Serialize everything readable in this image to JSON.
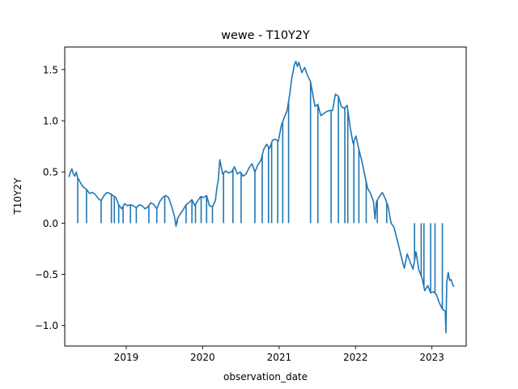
{
  "chart_data": {
    "type": "line",
    "title": "wewe - T10Y2Y",
    "xlabel": "observation_date",
    "ylabel": "T10Y2Y",
    "xlim": [
      "2018-03-13",
      "2023-06-14"
    ],
    "ylim": [
      -1.2,
      1.72
    ],
    "x_tick_labels": [
      "2019",
      "2020",
      "2021",
      "2022",
      "2023"
    ],
    "x_ticks": [
      "2019-01-01",
      "2020-01-01",
      "2021-01-01",
      "2022-01-01",
      "2023-01-01"
    ],
    "y_ticks": [
      -1.0,
      -0.5,
      0.0,
      0.5,
      1.0,
      1.5
    ],
    "y_tick_labels": [
      "−1.0",
      "−0.5",
      "0.0",
      "0.5",
      "1.0",
      "1.5"
    ],
    "grid": false,
    "line_color": "#1f77b4",
    "series": [
      {
        "x": [
          "2018-04-02",
          "2018-04-09",
          "2018-04-16",
          "2018-04-23",
          "2018-04-30",
          "2018-05-07",
          "2018-05-14",
          "2018-05-21",
          "2018-05-28",
          "2018-06-11",
          "2018-06-25",
          "2018-07-09",
          "2018-07-23",
          "2018-08-06",
          "2018-08-20",
          "2018-09-03",
          "2018-09-17",
          "2018-10-01",
          "2018-10-15",
          "2018-10-29",
          "2018-11-12",
          "2018-11-26",
          "2018-12-10",
          "2018-12-24",
          "2019-01-07",
          "2019-01-21",
          "2019-02-04",
          "2019-02-18",
          "2019-03-04",
          "2019-03-18",
          "2019-04-01",
          "2019-04-15",
          "2019-04-29",
          "2019-05-13",
          "2019-05-27",
          "2019-06-10",
          "2019-06-24",
          "2019-07-08",
          "2019-07-22",
          "2019-08-05",
          "2019-08-19",
          "2019-08-27",
          "2019-09-02",
          "2019-09-16",
          "2019-09-30",
          "2019-10-14",
          "2019-10-28",
          "2019-11-11",
          "2019-11-25",
          "2019-12-09",
          "2019-12-23",
          "2020-01-06",
          "2020-01-20",
          "2020-02-03",
          "2020-02-17",
          "2020-03-02",
          "2020-03-09",
          "2020-03-16",
          "2020-03-23",
          "2020-04-06",
          "2020-04-20",
          "2020-05-04",
          "2020-05-18",
          "2020-06-01",
          "2020-06-15",
          "2020-06-29",
          "2020-07-13",
          "2020-07-27",
          "2020-08-10",
          "2020-08-24",
          "2020-09-07",
          "2020-09-21",
          "2020-10-05",
          "2020-10-19",
          "2020-11-02",
          "2020-11-16",
          "2020-11-30",
          "2020-12-14",
          "2020-12-28",
          "2021-01-11",
          "2021-01-25",
          "2021-02-08",
          "2021-02-22",
          "2021-03-01",
          "2021-03-15",
          "2021-03-22",
          "2021-03-29",
          "2021-04-05",
          "2021-04-19",
          "2021-05-03",
          "2021-05-17",
          "2021-05-31",
          "2021-06-07",
          "2021-06-14",
          "2021-06-21",
          "2021-07-05",
          "2021-07-19",
          "2021-08-02",
          "2021-08-16",
          "2021-08-30",
          "2021-09-13",
          "2021-09-27",
          "2021-10-11",
          "2021-10-25",
          "2021-11-08",
          "2021-11-22",
          "2021-12-06",
          "2021-12-20",
          "2022-01-03",
          "2022-01-17",
          "2022-01-31",
          "2022-02-14",
          "2022-02-28",
          "2022-03-14",
          "2022-03-28",
          "2022-04-04",
          "2022-04-11",
          "2022-04-25",
          "2022-05-09",
          "2022-05-23",
          "2022-06-06",
          "2022-06-20",
          "2022-07-04",
          "2022-07-11",
          "2022-07-25",
          "2022-08-08",
          "2022-08-22",
          "2022-09-05",
          "2022-09-19",
          "2022-10-03",
          "2022-10-17",
          "2022-10-31",
          "2022-11-14",
          "2022-11-28",
          "2022-12-12",
          "2022-12-26",
          "2023-01-09",
          "2023-01-23",
          "2023-02-06",
          "2023-02-20",
          "2023-03-06",
          "2023-03-09",
          "2023-03-13",
          "2023-03-20",
          "2023-03-27",
          "2023-04-03",
          "2023-04-10",
          "2023-04-17"
        ],
        "values": [
          0.45,
          0.5,
          0.53,
          0.48,
          0.46,
          0.5,
          0.44,
          0.42,
          0.39,
          0.35,
          0.33,
          0.29,
          0.3,
          0.28,
          0.24,
          0.22,
          0.27,
          0.3,
          0.29,
          0.27,
          0.25,
          0.18,
          0.14,
          0.19,
          0.17,
          0.18,
          0.17,
          0.15,
          0.18,
          0.17,
          0.14,
          0.16,
          0.2,
          0.18,
          0.14,
          0.21,
          0.25,
          0.27,
          0.25,
          0.17,
          0.07,
          -0.03,
          0.04,
          0.09,
          0.13,
          0.18,
          0.2,
          0.23,
          0.17,
          0.22,
          0.26,
          0.25,
          0.27,
          0.17,
          0.16,
          0.22,
          0.34,
          0.42,
          0.62,
          0.48,
          0.51,
          0.49,
          0.5,
          0.55,
          0.48,
          0.5,
          0.46,
          0.48,
          0.54,
          0.58,
          0.5,
          0.57,
          0.61,
          0.72,
          0.77,
          0.73,
          0.81,
          0.82,
          0.8,
          0.95,
          1.03,
          1.1,
          1.28,
          1.4,
          1.55,
          1.58,
          1.53,
          1.57,
          1.47,
          1.52,
          1.44,
          1.38,
          1.3,
          1.22,
          1.14,
          1.16,
          1.05,
          1.07,
          1.09,
          1.1,
          1.1,
          1.26,
          1.24,
          1.14,
          1.12,
          1.15,
          0.94,
          0.78,
          0.85,
          0.72,
          0.61,
          0.47,
          0.34,
          0.29,
          0.21,
          0.04,
          0.21,
          0.26,
          0.3,
          0.24,
          0.16,
          0.0,
          -0.04,
          -0.1,
          -0.21,
          -0.33,
          -0.44,
          -0.3,
          -0.38,
          -0.45,
          -0.28,
          -0.46,
          -0.53,
          -0.66,
          -0.61,
          -0.68,
          -0.67,
          -0.7,
          -0.78,
          -0.84,
          -0.86,
          -1.07,
          -0.58,
          -0.48,
          -0.56,
          -0.55,
          -0.6,
          -0.62
        ],
        "drop_to_zero_dates": [
          "2018-05-14",
          "2018-06-25",
          "2018-09-03",
          "2018-10-22",
          "2018-11-05",
          "2018-11-26",
          "2018-12-17",
          "2019-01-21",
          "2019-02-18",
          "2019-04-19",
          "2019-05-27",
          "2019-07-04",
          "2019-09-02",
          "2019-10-14",
          "2019-11-11",
          "2019-11-28",
          "2019-12-25",
          "2020-01-20",
          "2020-02-17",
          "2020-04-10",
          "2020-05-25",
          "2020-07-03",
          "2020-09-07",
          "2020-10-12",
          "2020-11-11",
          "2020-11-26",
          "2020-12-25",
          "2021-01-18",
          "2021-02-15",
          "2021-05-31",
          "2021-07-05",
          "2021-09-06",
          "2021-10-11",
          "2021-11-11",
          "2021-11-25",
          "2021-12-24",
          "2022-01-17",
          "2022-02-21",
          "2022-04-15",
          "2022-05-30",
          "2022-06-20",
          "2022-10-10",
          "2022-11-11",
          "2022-11-24",
          "2022-12-26",
          "2023-01-16",
          "2023-02-20"
        ]
      }
    ]
  }
}
